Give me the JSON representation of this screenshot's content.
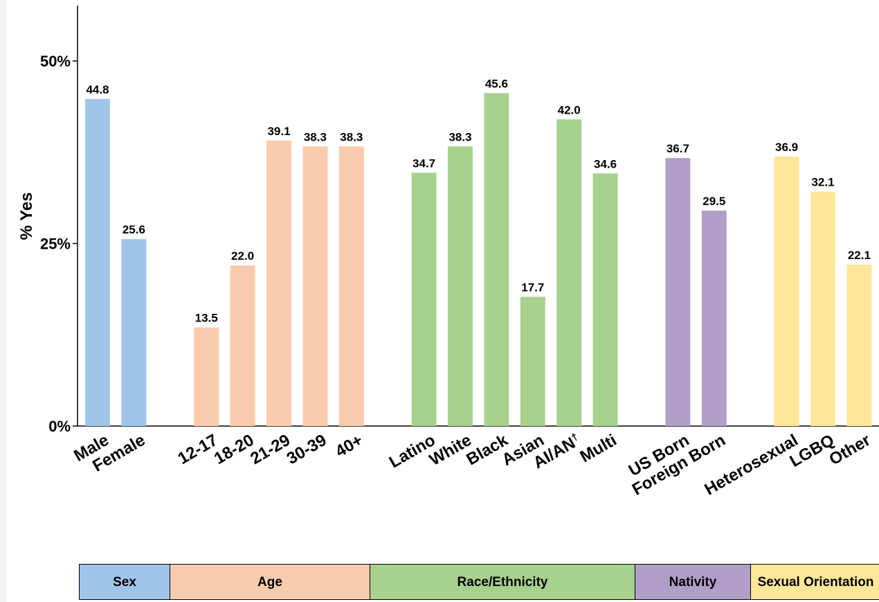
{
  "colors": {
    "sex": "#9fc5e8",
    "age": "#f8cbad",
    "race": "#a9d18e",
    "nativity": "#b09ec8",
    "sexual_orientation": "#ffe699",
    "axis": "#000000",
    "background": "#ffffff"
  },
  "chart_data": {
    "type": "bar",
    "title": "",
    "xlabel": "",
    "ylabel": "% Yes",
    "ylim": [
      0,
      57
    ],
    "yticks": [
      0,
      25,
      50
    ],
    "ytick_labels": [
      "0%",
      "25%",
      "50%"
    ],
    "grid": false,
    "legend": "group table below chart",
    "groups": [
      {
        "name": "Sex",
        "color_key": "sex",
        "categories": [
          "Male",
          "Female"
        ],
        "values": [
          44.8,
          25.6
        ],
        "value_labels": [
          "44.8",
          "25.6"
        ]
      },
      {
        "name": "Age",
        "color_key": "age",
        "categories": [
          "12-17",
          "18-20",
          "21-29",
          "30-39",
          "40+"
        ],
        "values": [
          13.5,
          22.0,
          39.1,
          38.3,
          38.3
        ],
        "value_labels": [
          "13.5",
          "22.0",
          "39.1",
          "38.3",
          "38.3"
        ]
      },
      {
        "name": "Race/Ethnicity",
        "color_key": "race",
        "categories": [
          "Latino",
          "White",
          "Black",
          "Asian",
          "AI/AN",
          "Multi"
        ],
        "category_superscripts": [
          "",
          "",
          "",
          "",
          "†",
          ""
        ],
        "values": [
          34.7,
          38.3,
          45.6,
          17.7,
          42.0,
          34.6
        ],
        "value_labels": [
          "34.7",
          "38.3",
          "45.6",
          "17.7",
          "42.0",
          "34.6"
        ]
      },
      {
        "name": "Nativity",
        "color_key": "nativity",
        "categories": [
          "US Born",
          "Foreign Born"
        ],
        "values": [
          36.7,
          29.5
        ],
        "value_labels": [
          "36.7",
          "29.5"
        ]
      },
      {
        "name": "Sexual Orientation",
        "color_key": "sexual_orientation",
        "categories": [
          "Heterosexual",
          "LGBQ",
          "Other"
        ],
        "values": [
          36.9,
          32.1,
          22.1
        ],
        "value_labels": [
          "36.9",
          "32.1",
          "22.1"
        ]
      }
    ]
  },
  "group_table": {
    "sex": "Sex",
    "age": "Age",
    "race": "Race/Ethnicity",
    "nativity": "Nativity",
    "sexual_orientation": "Sexual Orientation"
  }
}
